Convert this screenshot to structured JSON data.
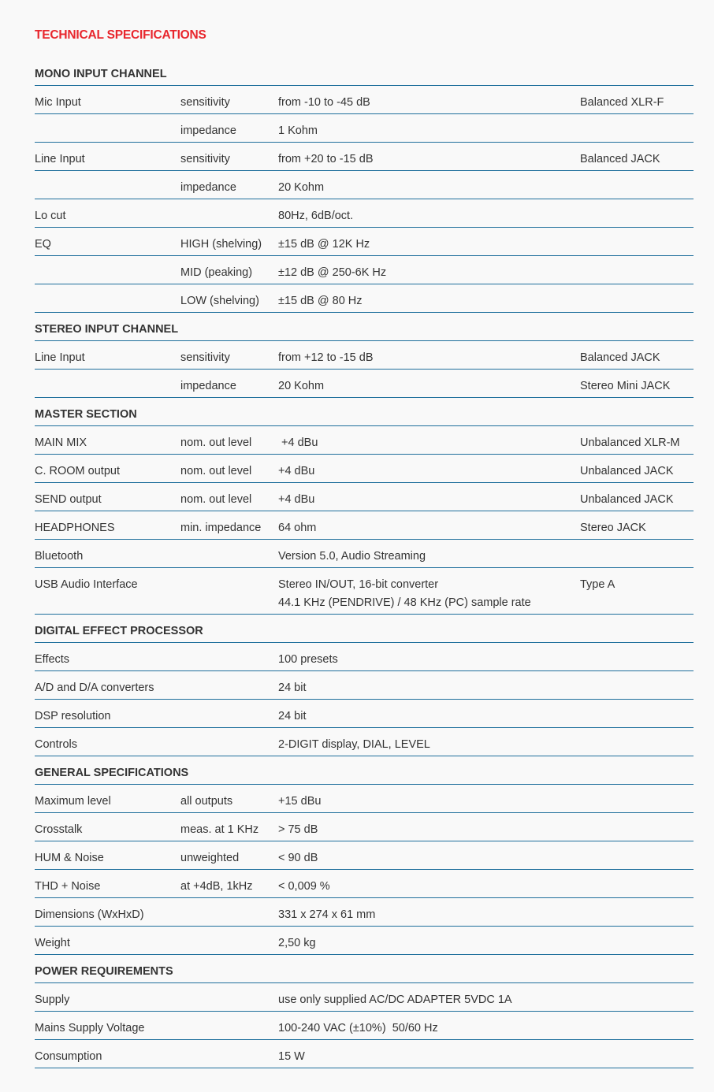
{
  "title": "TECHNICAL SPECIFICATIONS",
  "colors": {
    "title": "#e8262d",
    "divider": "#1f6f9c",
    "background": "#f9f9f9"
  },
  "sections": [
    {
      "heading": "MONO INPUT CHANNEL",
      "rows": [
        [
          "Mic Input",
          "sensitivity",
          "from -10 to -45 dB",
          "Balanced XLR-F"
        ],
        [
          "",
          "impedance",
          "1 Kohm",
          ""
        ],
        [
          "Line Input",
          "sensitivity",
          "from +20 to -15 dB",
          "Balanced JACK"
        ],
        [
          "",
          "impedance",
          "20 Kohm",
          ""
        ],
        [
          "Lo cut",
          "",
          "80Hz, 6dB/oct.",
          ""
        ],
        [
          "EQ",
          "HIGH (shelving)",
          "±15 dB @ 12K Hz",
          ""
        ],
        [
          "",
          "MID (peaking)",
          "±12 dB @ 250-6K Hz",
          ""
        ],
        [
          "",
          "LOW (shelving)",
          "±15 dB @ 80 Hz",
          ""
        ]
      ]
    },
    {
      "heading": "STEREO INPUT CHANNEL",
      "rows": [
        [
          "Line Input",
          "sensitivity",
          "from +12 to -15 dB",
          "Balanced JACK"
        ],
        [
          "",
          "impedance",
          "20 Kohm",
          "Stereo Mini JACK"
        ]
      ]
    },
    {
      "heading": "MASTER SECTION",
      "rows": [
        [
          "MAIN MIX",
          "nom. out level",
          " +4 dBu",
          "Unbalanced XLR-M"
        ],
        [
          "C. ROOM output",
          "nom. out level",
          "+4 dBu",
          "Unbalanced JACK"
        ],
        [
          "SEND output",
          "nom. out level",
          "+4 dBu",
          "Unbalanced JACK"
        ],
        [
          "HEADPHONES",
          "min. impedance",
          "64 ohm",
          "Stereo JACK"
        ],
        [
          "Bluetooth",
          "",
          "Version 5.0, Audio Streaming",
          ""
        ],
        [
          "USB Audio Interface",
          "",
          [
            "Stereo IN/OUT, 16-bit converter",
            "44.1 KHz (PENDRIVE) / 48 KHz (PC) sample rate"
          ],
          "Type A"
        ]
      ]
    },
    {
      "heading": "DIGITAL EFFECT PROCESSOR",
      "rows": [
        [
          "Effects",
          "",
          "100 presets",
          ""
        ],
        [
          "A/D and D/A converters",
          "",
          "24 bit",
          ""
        ],
        [
          "DSP resolution",
          "",
          "24 bit",
          ""
        ],
        [
          "Controls",
          "",
          "2-DIGIT display, DIAL, LEVEL",
          ""
        ]
      ]
    },
    {
      "heading": "GENERAL SPECIFICATIONS",
      "rows": [
        [
          "Maximum level",
          "all outputs",
          "+15 dBu",
          ""
        ],
        [
          "Crosstalk",
          "meas. at 1 KHz",
          "> 75 dB",
          ""
        ],
        [
          "HUM & Noise",
          "unweighted",
          "< 90 dB",
          ""
        ],
        [
          "THD + Noise",
          "at +4dB, 1kHz",
          "< 0,009 %",
          ""
        ],
        [
          "Dimensions (WxHxD)",
          "",
          "331 x 274 x 61 mm",
          ""
        ],
        [
          "Weight",
          "",
          "2,50 kg",
          ""
        ]
      ]
    },
    {
      "heading": "POWER REQUIREMENTS",
      "rows": [
        [
          "Supply",
          "",
          "use only supplied AC/DC ADAPTER 5VDC 1A",
          ""
        ],
        [
          "Mains Supply Voltage",
          "",
          "100-240 VAC (±10%)  50/60 Hz",
          ""
        ],
        [
          "Consumption",
          "",
          "15 W",
          ""
        ]
      ]
    }
  ]
}
